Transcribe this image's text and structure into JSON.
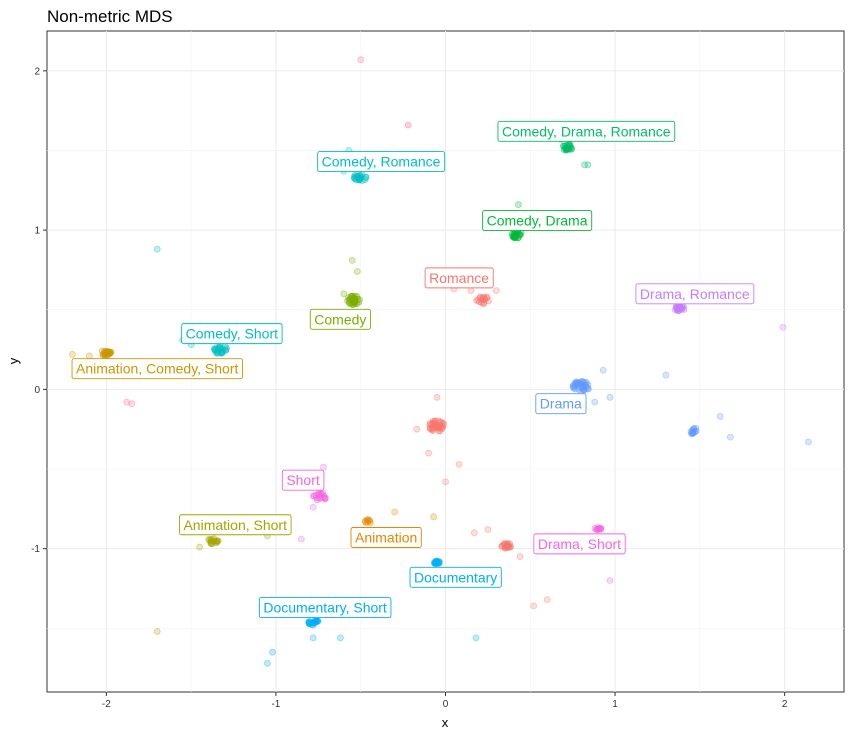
{
  "chart_data": {
    "type": "scatter",
    "title": "Non-metric MDS",
    "xlabel": "x",
    "ylabel": "y",
    "xlim": [
      -2.35,
      2.35
    ],
    "ylim": [
      -1.9,
      2.25
    ],
    "xticks": [
      -2,
      -1,
      0,
      1,
      2
    ],
    "yticks": [
      -1,
      0,
      1,
      2
    ],
    "grid": true,
    "legend": "none",
    "clusters": [
      {
        "label": "Comedy, Drama, Romance",
        "color": "#00BE67",
        "center": [
          0.72,
          1.52
        ],
        "spread": 0.03,
        "count": 22,
        "label_pos": [
          0.83,
          1.62
        ],
        "outliers": [
          [
            0.82,
            1.41
          ],
          [
            0.84,
            1.41
          ],
          [
            0.68,
            1.57
          ]
        ]
      },
      {
        "label": "Comedy, Romance",
        "color": "#00BFC4",
        "center": [
          -0.5,
          1.33
        ],
        "spread": 0.04,
        "count": 22,
        "label_pos": [
          -0.38,
          1.43
        ],
        "outliers": [
          [
            -0.57,
            1.5
          ],
          [
            -0.6,
            1.37
          ]
        ]
      },
      {
        "label": "Comedy, Drama",
        "color": "#00BA38",
        "center": [
          0.42,
          0.97
        ],
        "spread": 0.03,
        "count": 25,
        "label_pos": [
          0.54,
          1.06
        ],
        "outliers": [
          [
            0.43,
            1.16
          ],
          [
            0.44,
            1.05
          ]
        ]
      },
      {
        "label": "Romance",
        "color": "#F8766D",
        "center": [
          0.22,
          0.56
        ],
        "spread": 0.04,
        "count": 16,
        "label_pos": [
          0.08,
          0.7
        ],
        "outliers": [
          [
            0.3,
            0.62
          ],
          [
            0.15,
            0.62
          ],
          [
            0.05,
            0.63
          ]
        ]
      },
      {
        "label": "Drama, Romance",
        "color": "#C77CFF",
        "center": [
          1.38,
          0.51
        ],
        "spread": 0.03,
        "count": 22,
        "label_pos": [
          1.47,
          0.6
        ],
        "outliers": [
          [
            1.58,
            0.62
          ],
          [
            1.99,
            0.39
          ]
        ]
      },
      {
        "label": "Comedy",
        "color": "#7CAE00",
        "center": [
          -0.54,
          0.56
        ],
        "spread": 0.04,
        "count": 30,
        "label_pos": [
          -0.62,
          0.44
        ],
        "outliers": [
          [
            -0.55,
            0.81
          ],
          [
            -0.52,
            0.74
          ],
          [
            -0.6,
            0.6
          ]
        ]
      },
      {
        "label": "Comedy, Short",
        "color": "#00BFC4",
        "center": [
          -1.33,
          0.25
        ],
        "spread": 0.04,
        "count": 24,
        "label_pos": [
          -1.26,
          0.35
        ],
        "outliers": [
          [
            -1.55,
            0.31
          ],
          [
            -1.5,
            0.28
          ],
          [
            -1.7,
            0.88
          ]
        ]
      },
      {
        "label": "Animation, Comedy, Short",
        "color": "#CD9600",
        "center": [
          -2.0,
          0.23
        ],
        "spread": 0.03,
        "count": 24,
        "label_pos": [
          -1.7,
          0.13
        ],
        "outliers": [
          [
            -2.2,
            0.22
          ],
          [
            -2.1,
            0.21
          ]
        ]
      },
      {
        "label": "Drama",
        "color": "#619CFF",
        "center": [
          0.8,
          0.02
        ],
        "spread": 0.05,
        "count": 40,
        "label_pos": [
          0.68,
          -0.09
        ],
        "outliers": [
          [
            0.93,
            0.12
          ],
          [
            0.97,
            -0.05
          ],
          [
            0.88,
            -0.08
          ]
        ]
      },
      {
        "label": "",
        "color": "#619CFF",
        "center": [
          1.46,
          -0.26
        ],
        "spread": 0.03,
        "count": 14,
        "label_pos": null,
        "outliers": [
          [
            1.62,
            -0.17
          ],
          [
            1.68,
            -0.3
          ],
          [
            2.14,
            -0.33
          ],
          [
            1.3,
            0.09
          ]
        ]
      },
      {
        "label": "",
        "color": "#F8766D",
        "center": [
          -0.05,
          -0.23
        ],
        "spread": 0.05,
        "count": 38,
        "label_pos": null,
        "outliers": [
          [
            -0.17,
            -0.25
          ],
          [
            -0.05,
            -0.05
          ],
          [
            0.08,
            -0.47
          ],
          [
            0.0,
            -0.58
          ],
          [
            -0.1,
            -0.4
          ]
        ]
      },
      {
        "label": "Short",
        "color": "#F564E3",
        "center": [
          -0.74,
          -0.67
        ],
        "spread": 0.04,
        "count": 18,
        "label_pos": [
          -0.84,
          -0.57
        ],
        "outliers": [
          [
            -0.72,
            -0.49
          ],
          [
            -0.78,
            -0.74
          ],
          [
            -0.85,
            -0.94
          ]
        ]
      },
      {
        "label": "Animation, Short",
        "color": "#A3A500",
        "center": [
          -1.37,
          -0.95
        ],
        "spread": 0.03,
        "count": 16,
        "label_pos": [
          -1.24,
          -0.85
        ],
        "outliers": [
          [
            -1.45,
            -0.99
          ],
          [
            -1.7,
            -1.52
          ],
          [
            -1.05,
            -0.92
          ]
        ]
      },
      {
        "label": "Animation",
        "color": "#E58700",
        "center": [
          -0.46,
          -0.83
        ],
        "spread": 0.02,
        "count": 8,
        "label_pos": [
          -0.35,
          -0.93
        ],
        "outliers": [
          [
            -0.3,
            -0.77
          ],
          [
            -0.07,
            -0.8
          ]
        ]
      },
      {
        "label": "",
        "color": "#F8766D",
        "center": [
          0.36,
          -0.98
        ],
        "spread": 0.03,
        "count": 20,
        "label_pos": null,
        "outliers": [
          [
            0.25,
            -0.88
          ],
          [
            0.52,
            -1.36
          ],
          [
            0.6,
            -1.32
          ],
          [
            0.17,
            -0.9
          ],
          [
            0.44,
            -1.05
          ]
        ]
      },
      {
        "label": "Drama, Short",
        "color": "#F564E3",
        "center": [
          0.9,
          -0.87
        ],
        "spread": 0.02,
        "count": 10,
        "label_pos": [
          0.79,
          -0.97
        ],
        "outliers": [
          [
            0.97,
            -1.2
          ]
        ]
      },
      {
        "label": "Documentary",
        "color": "#00B0F6",
        "center": [
          -0.05,
          -1.09
        ],
        "spread": 0.02,
        "count": 18,
        "label_pos": [
          0.06,
          -1.18
        ],
        "outliers": [
          [
            0.18,
            -1.56
          ]
        ]
      },
      {
        "label": "Documentary, Short",
        "color": "#00B0F6",
        "center": [
          -0.78,
          -1.46
        ],
        "spread": 0.03,
        "count": 20,
        "label_pos": [
          -0.71,
          -1.37
        ],
        "outliers": [
          [
            -1.02,
            -1.65
          ],
          [
            -1.05,
            -1.72
          ],
          [
            -0.62,
            -1.56
          ],
          [
            -0.78,
            -1.56
          ]
        ]
      },
      {
        "label": "",
        "color": "#FF6C91",
        "center": [
          -0.22,
          1.66
        ],
        "spread": 0.0,
        "count": 1,
        "label_pos": null,
        "outliers": [
          [
            -0.5,
            2.07
          ],
          [
            -1.88,
            -0.08
          ],
          [
            -1.85,
            -0.09
          ]
        ]
      }
    ]
  }
}
